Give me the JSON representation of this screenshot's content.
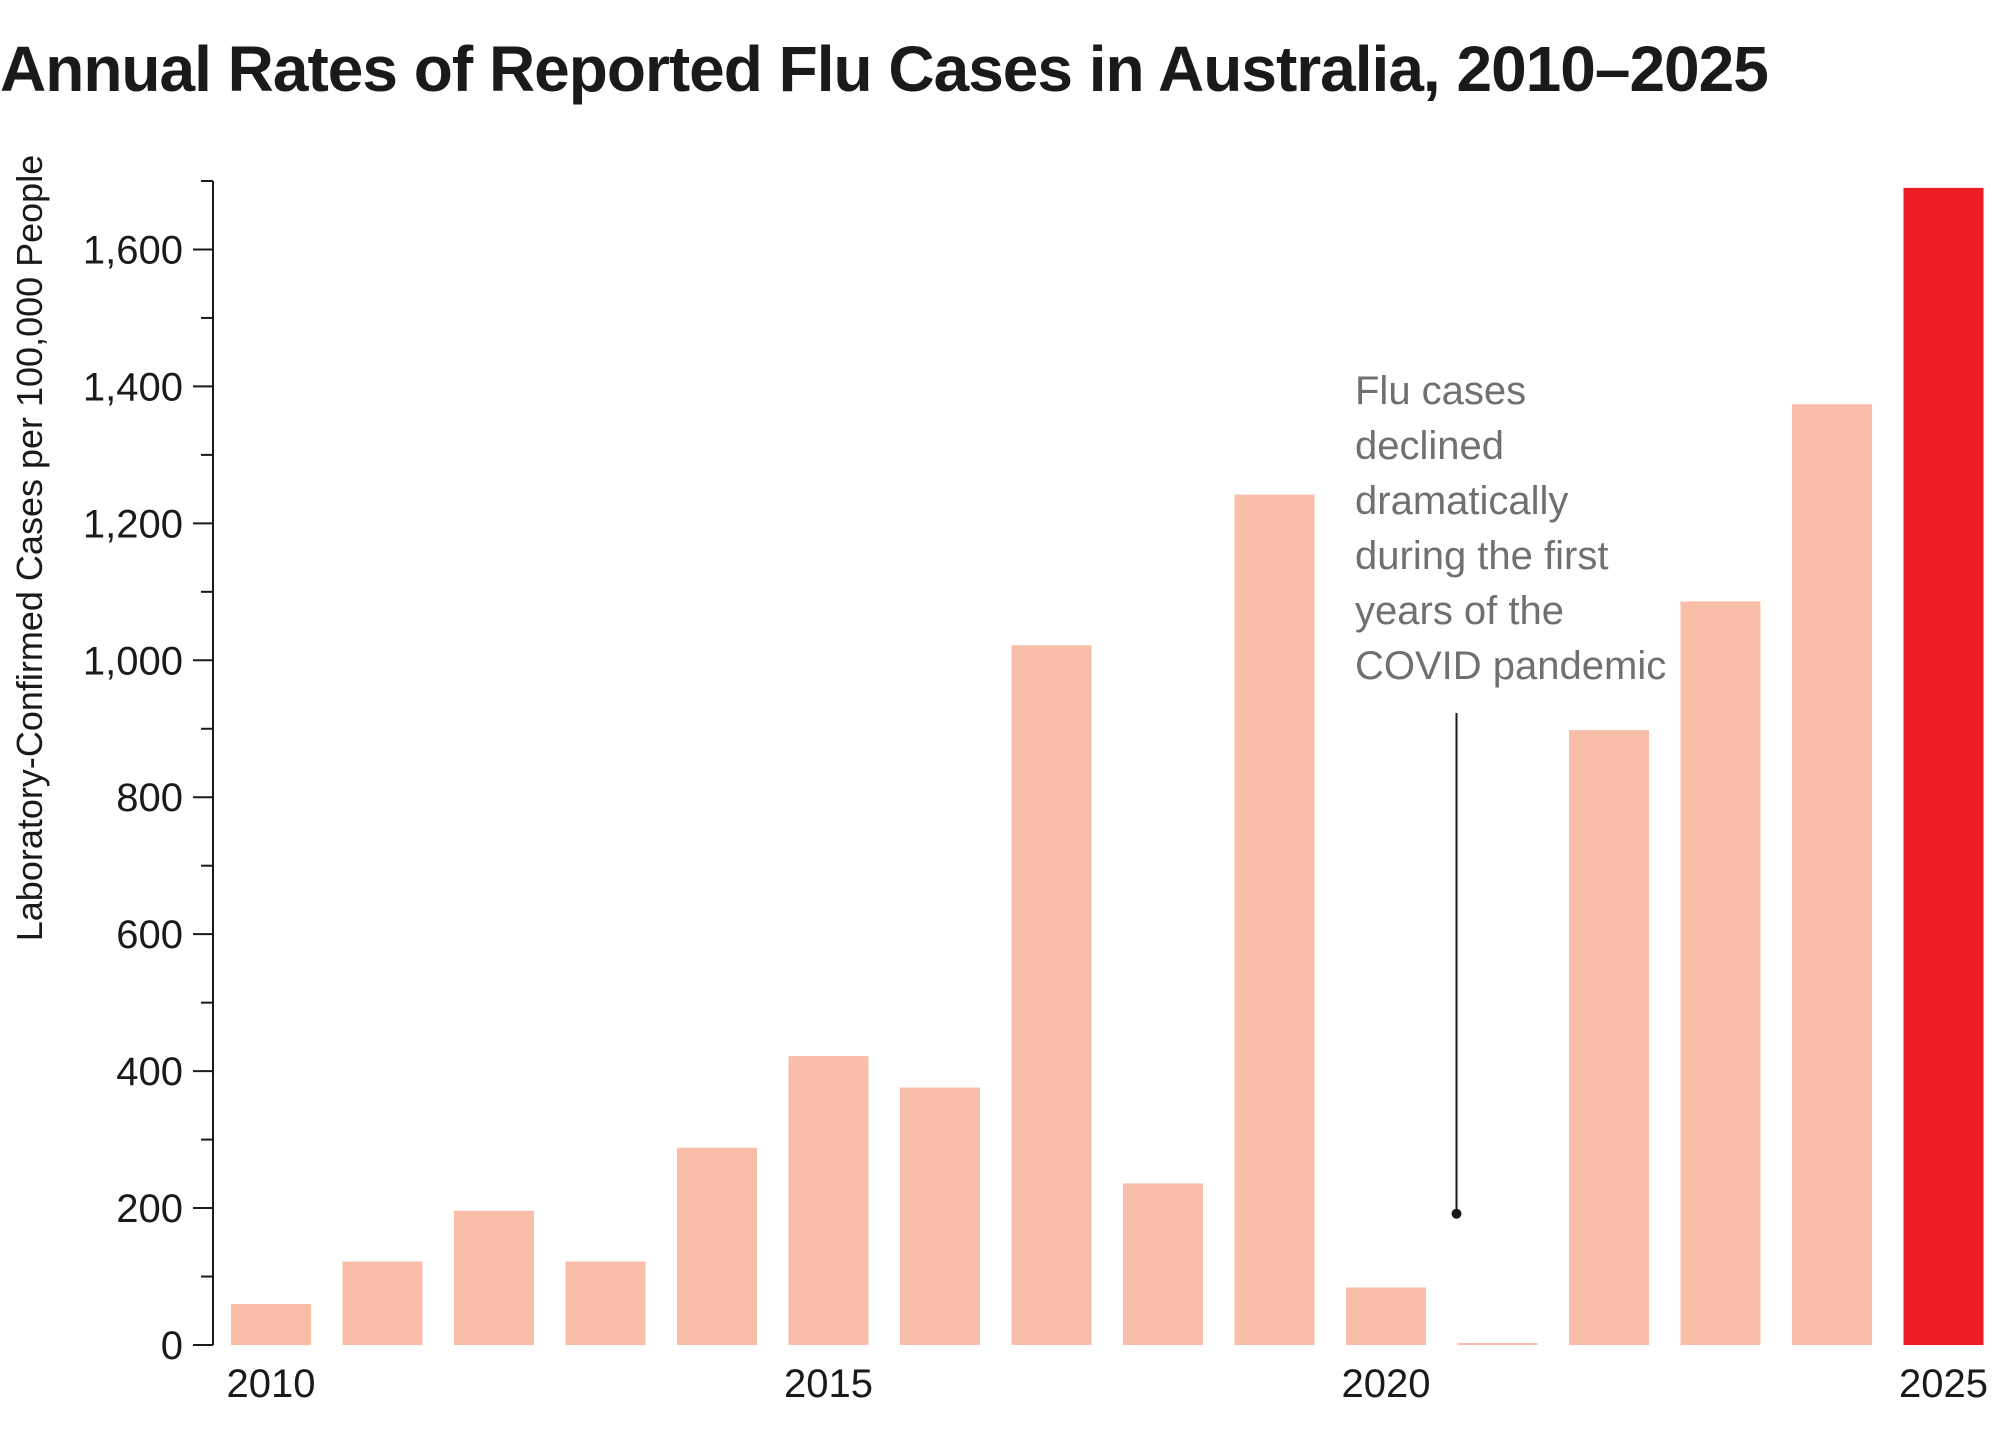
{
  "chart_data": {
    "type": "bar",
    "title": "Annual Rates of Reported Flu Cases in Australia, 2010–2025",
    "ylabel": "Laboratory-Confirmed Cases per 100,000 People",
    "xlabel": "",
    "categories": [
      "2010",
      "2011",
      "2012",
      "2013",
      "2014",
      "2015",
      "2016",
      "2017",
      "2018",
      "2019",
      "2020",
      "2021",
      "2022",
      "2023",
      "2024",
      "2025"
    ],
    "values": [
      60,
      122,
      196,
      122,
      288,
      422,
      376,
      1022,
      236,
      1242,
      84,
      2,
      898,
      1086,
      1374,
      1690
    ],
    "x_tick_labels": [
      "2010",
      "2015",
      "2020",
      "2025"
    ],
    "y_ticks": [
      0,
      200,
      400,
      600,
      800,
      1000,
      1200,
      1400,
      1600
    ],
    "y_tick_labels": [
      "0",
      "200",
      "400",
      "600",
      "800",
      "1,000",
      "1,200",
      "1,400",
      "1,600"
    ],
    "ylim": [
      0,
      1700
    ],
    "grid": false,
    "colors": {
      "default_bar": "#f9bea7",
      "highlight_bar": "#ed1d24",
      "text": "#1a1a1a",
      "annotation": "#707070"
    },
    "highlight_category": "2025",
    "annotation": {
      "lines": [
        "Flu cases",
        "declined",
        "dramatically",
        "during the first",
        "years of the",
        "COVID pandemic"
      ],
      "points_to_category": "2021",
      "points_to_value": 180
    }
  }
}
